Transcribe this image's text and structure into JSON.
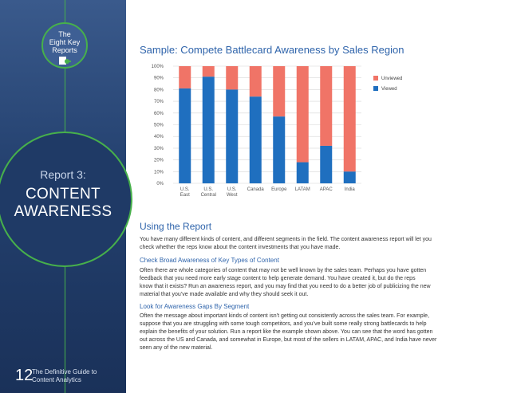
{
  "sidebar": {
    "badge_lines": [
      "The",
      "Eight Key",
      "Reports"
    ],
    "report_number": "Report 3:",
    "report_title_lines": [
      "CONTENT",
      "AWARENESS"
    ],
    "page_number": "12",
    "footer_lines": [
      "The Definitive Guide to",
      "Content Analytics"
    ]
  },
  "colors": {
    "accent": "#2f64ab",
    "viewed": "#1f6fbf",
    "unviewed": "#f07467",
    "ring": "#47b04b",
    "sidebar": "#23406e"
  },
  "chart_data": {
    "type": "bar",
    "stacked": true,
    "title": "Sample: Compete Battlecard Awareness by Sales Region",
    "categories": [
      [
        "U.S.",
        "East"
      ],
      [
        "U.S.",
        "Central"
      ],
      [
        "U.S.",
        "West"
      ],
      [
        "Canada"
      ],
      [
        "Europe"
      ],
      [
        "LATAM"
      ],
      [
        "APAC"
      ],
      [
        "India"
      ]
    ],
    "series": [
      {
        "name": "Viewed",
        "values": [
          81,
          91,
          80,
          74,
          57,
          18,
          32,
          10
        ],
        "color": "#1f6fbf"
      },
      {
        "name": "Unviewed",
        "values": [
          19,
          9,
          20,
          26,
          43,
          82,
          68,
          90
        ],
        "color": "#f07467"
      }
    ],
    "ylim": [
      0,
      100
    ],
    "yticks": [
      "0%",
      "10%",
      "20%",
      "30%",
      "40%",
      "50%",
      "60%",
      "70%",
      "80%",
      "90%",
      "100%"
    ],
    "legend": [
      "Unviewed",
      "Viewed"
    ],
    "legend_position": "right",
    "grid": true
  },
  "body": {
    "heading": "Using the Report",
    "intro_lines": [
      "You have many different kinds of content, and different segments in the field. The content awareness report will let you",
      "check whether the reps know about the content investments that you have made."
    ],
    "subhead1": "Check Broad Awareness of Key Types of Content",
    "para1_lines": [
      "Often there are whole categories of content that may not be well known by the sales team. Perhaps you have gotten",
      "feedback that you need more early stage content to help generate demand. You have created it, but do the reps",
      "know that it exists? Run an awareness report, and you may find that you need to do a better job of publicizing the new",
      "material that you’ve made available and why they should seek it out."
    ],
    "subhead2": "Look for Awareness Gaps By Segment",
    "para2_lines": [
      "Often the message about important kinds of content isn’t getting out consistently across the sales team. For example,",
      "suppose that you are struggling with some tough competitors, and you’ve built some really strong battlecards to help",
      "explain the benefits of your solution. Run a report like the example shown above. You can see that the word has gotten",
      "out across the US and Canada, and somewhat in Europe, but most of the sellers in LATAM, APAC, and India have never",
      "seen any of the new material."
    ]
  }
}
